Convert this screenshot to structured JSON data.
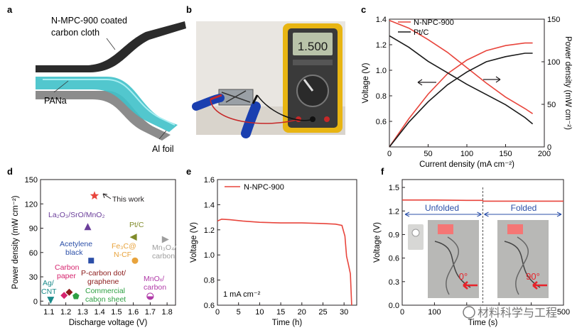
{
  "panels": {
    "a": {
      "letter": "a",
      "labels": {
        "cloth": "N-MPC-900 coated carbon cloth",
        "cloth_l1": "N-MPC-900 coated",
        "cloth_l2": "carbon cloth",
        "electrolyte": "PANa",
        "foil": "Al foil"
      },
      "colors": {
        "cloth": "#2b2b2b",
        "electrolyte": "#3fc1c9",
        "foil": "#8c8c8c"
      }
    },
    "b": {
      "letter": "b",
      "meter_reading": "1.500",
      "meter_mode": "V"
    },
    "c": {
      "letter": "c"
    },
    "d": {
      "letter": "d"
    },
    "e": {
      "letter": "e"
    },
    "f": {
      "letter": "f",
      "states": {
        "unfolded": "Unfolded",
        "folded": "Folded"
      },
      "angles": {
        "unfolded": "0°",
        "folded": "90°"
      },
      "watermark": "材料科学与工程"
    }
  },
  "chart_data": [
    {
      "id": "c",
      "type": "line",
      "xlabel": "Current density (mA cm⁻²)",
      "ylabel": "Voltage (V)",
      "y2label": "Power density (mW cm⁻²)",
      "xlim": [
        0,
        200
      ],
      "ylim": [
        0.4,
        1.4
      ],
      "y2lim": [
        0,
        150
      ],
      "xticks": [
        0,
        50,
        100,
        150,
        200
      ],
      "yticks": [
        0.6,
        0.8,
        1.0,
        1.2,
        1.4
      ],
      "y2ticks": [
        0,
        50,
        100,
        150
      ],
      "legend": [
        "N-NPC-900",
        "Pt/C"
      ],
      "legend_position": "top-center",
      "series": [
        {
          "name": "N-NPC-900",
          "axis": "left",
          "color": "#e8453c",
          "x": [
            0,
            25,
            50,
            75,
            100,
            125,
            150,
            175,
            185
          ],
          "y": [
            1.39,
            1.33,
            1.24,
            1.14,
            1.02,
            0.9,
            0.79,
            0.7,
            0.66
          ]
        },
        {
          "name": "N-NPC-900",
          "axis": "right",
          "color": "#e8453c",
          "x": [
            0,
            25,
            50,
            75,
            100,
            125,
            150,
            175,
            185
          ],
          "y": [
            0,
            33,
            62,
            86,
            102,
            113,
            119,
            122,
            122
          ]
        },
        {
          "name": "Pt/C",
          "axis": "left",
          "color": "#1a1a1a",
          "x": [
            0,
            25,
            50,
            75,
            100,
            125,
            150,
            175,
            185
          ],
          "y": [
            1.27,
            1.18,
            1.07,
            0.98,
            0.89,
            0.81,
            0.73,
            0.63,
            0.58
          ]
        },
        {
          "name": "Pt/C",
          "axis": "right",
          "color": "#1a1a1a",
          "x": [
            0,
            25,
            50,
            75,
            100,
            125,
            150,
            175,
            185
          ],
          "y": [
            0,
            29,
            53,
            73,
            88,
            100,
            106,
            110,
            110
          ]
        }
      ]
    },
    {
      "id": "d",
      "type": "scatter",
      "xlabel": "Discharge voltage (V)",
      "ylabel": "Power density (mW cm⁻²)",
      "xlim": [
        1.05,
        1.85
      ],
      "ylim": [
        -5,
        150
      ],
      "xticks": [
        1.1,
        1.2,
        1.3,
        1.4,
        1.5,
        1.6,
        1.7,
        1.8
      ],
      "yticks": [
        0,
        30,
        60,
        90,
        120,
        150
      ],
      "points": [
        {
          "label": "This work",
          "x": 1.37,
          "y": 130,
          "color": "#e8453c",
          "marker": "star"
        },
        {
          "label": "La2O3/SrO/MnO2",
          "x": 1.33,
          "y": 92,
          "color": "#6a3d9a",
          "marker": "triangle"
        },
        {
          "label": "Pt/C",
          "x": 1.6,
          "y": 79,
          "color": "#808b2a",
          "marker": "triangle-left"
        },
        {
          "label": "Mn3O4/carbon",
          "x": 1.79,
          "y": 76,
          "color": "#9e9e9e",
          "marker": "triangle-right"
        },
        {
          "label": "Acetylene black",
          "x": 1.35,
          "y": 50,
          "color": "#2b4fa8",
          "marker": "square"
        },
        {
          "label": "Fe3C@N-CF",
          "x": 1.61,
          "y": 50,
          "color": "#e8a33c",
          "marker": "circle"
        },
        {
          "label": "Ag/CNT",
          "x": 1.11,
          "y": 1,
          "color": "#1a8a8a",
          "marker": "triangle-down"
        },
        {
          "label": "Carbon paper",
          "x": 1.19,
          "y": 7,
          "color": "#d6246e",
          "marker": "diamond"
        },
        {
          "label": "P-carbon dot/graphene",
          "x": 1.22,
          "y": 11,
          "color": "#8b1a1a",
          "marker": "diamond"
        },
        {
          "label": "Commercial cabon sheet",
          "x": 1.26,
          "y": 6,
          "color": "#2ea043",
          "marker": "pentagon"
        },
        {
          "label": "MnOx/carbon",
          "x": 1.7,
          "y": 6,
          "color": "#b03aa8",
          "marker": "half-circle"
        }
      ],
      "annotations": {
        "this_work": "This work",
        "la": "La₂O₃/SrO/MnO₂",
        "ptc": "Pt/C",
        "mn3o4_l1": "Mn₃O₄/",
        "mn3o4_l2": "carbon",
        "acet_l1": "Acetylene",
        "acet_l2": "black",
        "fe3c_l1": "Fe₃C@",
        "fe3c_l2": "N-CF",
        "ag_l1": "Ag/",
        "ag_l2": "CNT",
        "cp_l1": "Carbon",
        "cp_l2": "paper",
        "pcd_l1": "P-carbon dot/",
        "pcd_l2": "graphene",
        "comm_l1": "Commercial",
        "comm_l2": "cabon sheet",
        "mnox_l1": "MnOₓ/",
        "mnox_l2": "carbon"
      }
    },
    {
      "id": "e",
      "type": "line",
      "xlabel": "Time (h)",
      "ylabel": "Voltage (V)",
      "xlim": [
        0,
        33
      ],
      "ylim": [
        0.6,
        1.6
      ],
      "xticks": [
        0,
        5,
        10,
        15,
        20,
        25,
        30
      ],
      "yticks": [
        0.6,
        0.8,
        1.0,
        1.2,
        1.4,
        1.6
      ],
      "legend": [
        "N-NPC-900"
      ],
      "legend_position": "top-left",
      "annotation": "1 mA cm⁻²",
      "series": [
        {
          "name": "N-NPC-900",
          "color": "#e8453c",
          "x": [
            0,
            1,
            3,
            6,
            10,
            15,
            20,
            25,
            28,
            29.5,
            30.2,
            30.6,
            31.0,
            31.5,
            31.8
          ],
          "y": [
            1.27,
            1.285,
            1.28,
            1.27,
            1.26,
            1.255,
            1.255,
            1.25,
            1.245,
            1.235,
            1.15,
            0.99,
            0.93,
            0.85,
            0.6
          ]
        }
      ]
    },
    {
      "id": "f",
      "type": "line",
      "xlabel": "Time (s)",
      "ylabel": "Voltage (V)",
      "xlim": [
        0,
        500
      ],
      "ylim": [
        0,
        1.6
      ],
      "xticks": [
        0,
        100,
        200,
        300,
        400,
        500
      ],
      "yticks": [
        0,
        0.3,
        0.6,
        0.9,
        1.2,
        1.5
      ],
      "xtick_labels": [
        "0",
        "100",
        "",
        "",
        "",
        "500"
      ],
      "series": [
        {
          "name": "",
          "color": "#e8453c",
          "x": [
            0,
            100,
            200,
            248,
            252,
            300,
            400,
            500
          ],
          "y": [
            1.34,
            1.34,
            1.335,
            1.335,
            1.325,
            1.325,
            1.325,
            1.325
          ]
        }
      ]
    }
  ]
}
